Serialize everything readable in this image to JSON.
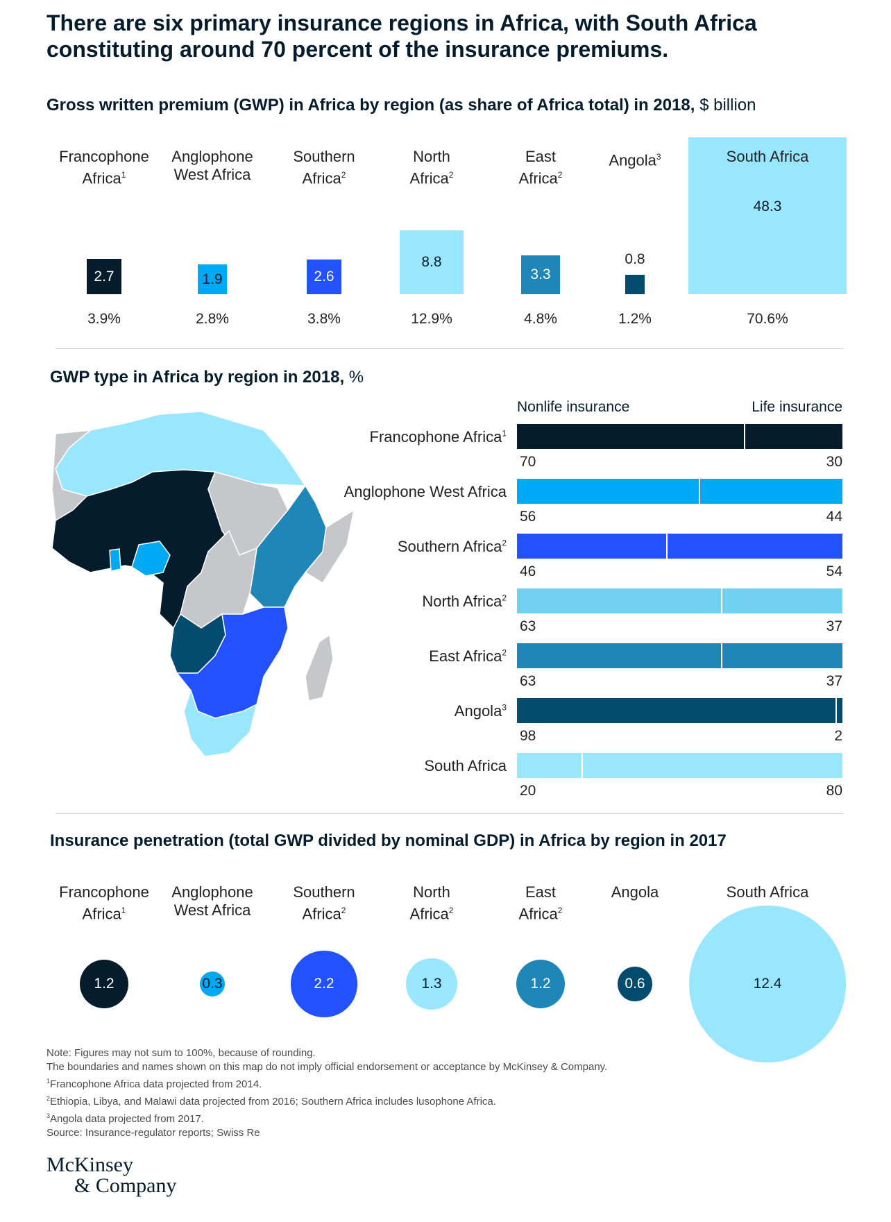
{
  "headline": "There are six primary insurance regions in Africa, with South Africa constituting around 70 percent of the insurance premiums.",
  "colors": {
    "francophone": "#051c2c",
    "anglophone_west": "#00a9f4",
    "southern": "#2251ff",
    "north": "#99e6ff",
    "north_bar": "#72d0f0",
    "east": "#1f86b8",
    "angola": "#034b6f",
    "south_africa": "#99e6ff",
    "other_map": "#c5c7ca"
  },
  "chart_data": [
    {
      "type": "bar",
      "title": "Gross written premium (GWP) in Africa by region (as share of Africa total) in 2018,",
      "unit": "$ billion",
      "categories": [
        {
          "line1": "Francophone",
          "line2": "Africa",
          "sup": "1"
        },
        {
          "line1": "Anglophone",
          "line2": "West Africa",
          "sup": ""
        },
        {
          "line1": "Southern",
          "line2": "Africa",
          "sup": "2"
        },
        {
          "line1": "North",
          "line2": "Africa",
          "sup": "2"
        },
        {
          "line1": "East",
          "line2": "Africa",
          "sup": "2"
        },
        {
          "line1": "Angola",
          "line2": "",
          "sup": "3"
        },
        {
          "line1": "South Africa",
          "line2": "",
          "sup": ""
        }
      ],
      "values": [
        2.7,
        1.9,
        2.6,
        8.8,
        3.3,
        0.8,
        48.3
      ],
      "value_labels": [
        "2.7",
        "1.9",
        "2.6",
        "8.8",
        "3.3",
        "0.8",
        "48.3"
      ],
      "shares": [
        "3.9%",
        "2.8%",
        "3.8%",
        "12.9%",
        "4.8%",
        "1.2%",
        "70.6%"
      ]
    },
    {
      "type": "stacked-bar",
      "title": "GWP type in Africa by region in 2018,",
      "unit": "%",
      "legend": {
        "nonlife": "Nonlife insurance",
        "life": "Life insurance"
      },
      "rows": [
        {
          "name": "Francophone Africa",
          "sup": "1",
          "nonlife": 70,
          "life": 30
        },
        {
          "name": "Anglophone West Africa",
          "sup": "",
          "nonlife": 56,
          "life": 44
        },
        {
          "name": "Southern Africa",
          "sup": "2",
          "nonlife": 46,
          "life": 54
        },
        {
          "name": "North Africa",
          "sup": "2",
          "nonlife": 63,
          "life": 37
        },
        {
          "name": "East Africa",
          "sup": "2",
          "nonlife": 63,
          "life": 37
        },
        {
          "name": "Angola",
          "sup": "3",
          "nonlife": 98,
          "life": 2
        },
        {
          "name": "South Africa",
          "sup": "",
          "nonlife": 20,
          "life": 80
        }
      ]
    },
    {
      "type": "bubble",
      "title": "Insurance penetration (total GWP divided by nominal GDP) in Africa by region in 2017",
      "categories": [
        {
          "line1": "Francophone",
          "line2": "Africa",
          "sup": "1"
        },
        {
          "line1": "Anglophone",
          "line2": "West Africa",
          "sup": ""
        },
        {
          "line1": "Southern",
          "line2": "Africa",
          "sup": "2"
        },
        {
          "line1": "North",
          "line2": "Africa",
          "sup": "2"
        },
        {
          "line1": "East",
          "line2": "Africa",
          "sup": "2"
        },
        {
          "line1": "Angola",
          "line2": "",
          "sup": ""
        },
        {
          "line1": "South Africa",
          "line2": "",
          "sup": ""
        }
      ],
      "values": [
        1.2,
        0.3,
        2.2,
        1.3,
        1.2,
        0.6,
        12.4
      ],
      "value_labels": [
        "1.2",
        "0.3",
        "2.2",
        "1.3",
        "1.2",
        "0.6",
        "12.4"
      ]
    }
  ],
  "notes": {
    "note": "Note: Figures may not sum to 100%, because of rounding.",
    "boundaries": "The boundaries and names shown on this map do not imply official endorsement or acceptance by McKinsey & Company.",
    "fn1": "Francophone Africa data projected from 2014.",
    "fn2": "Ethiopia, Libya, and Malawi data projected from 2016; Southern Africa includes lusophone Africa.",
    "fn3": "Angola data projected from 2017.",
    "source": "Source: Insurance-regulator reports; Swiss Re"
  },
  "logo": {
    "line1": "McKinsey",
    "line2": "& Company"
  }
}
